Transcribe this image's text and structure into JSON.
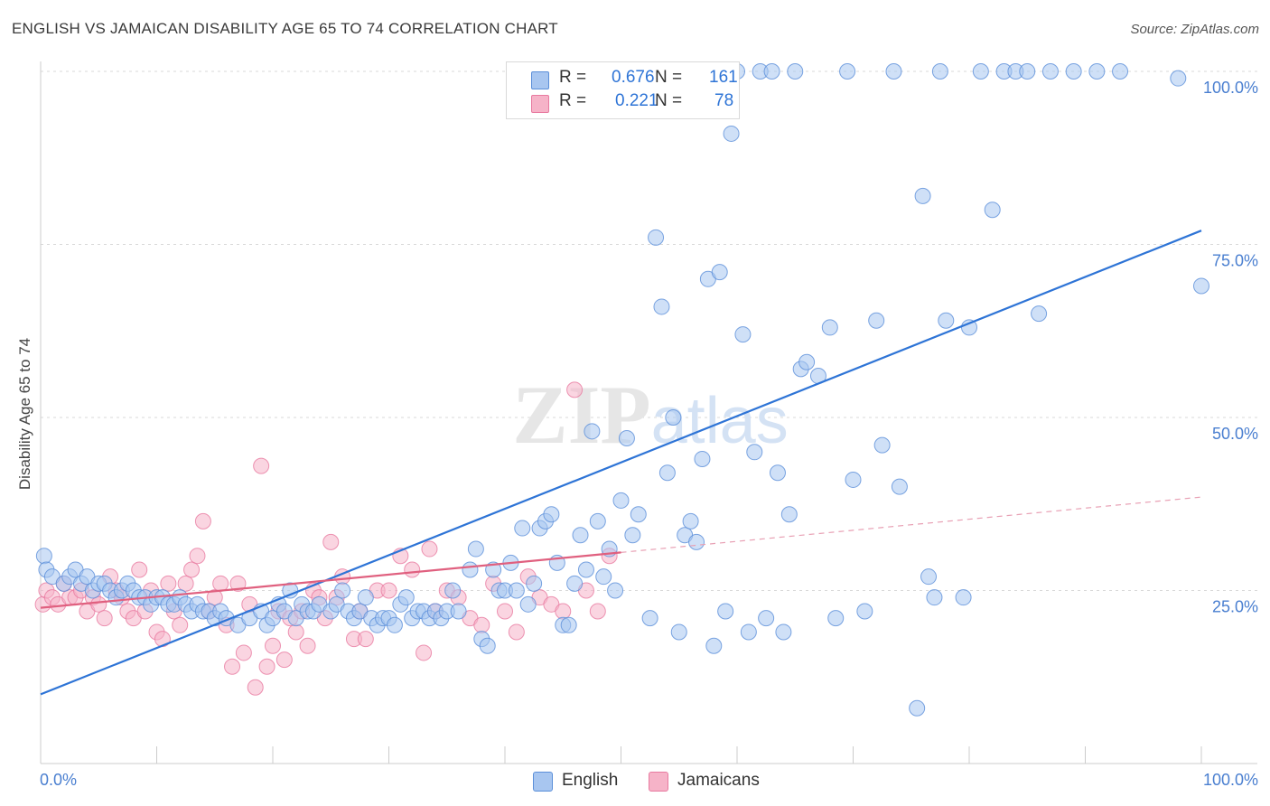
{
  "title": "ENGLISH VS JAMAICAN DISABILITY AGE 65 TO 74 CORRELATION CHART",
  "source": "Source: ZipAtlas.com",
  "watermark": {
    "bold": "ZIP",
    "light": "atlas"
  },
  "stats": [
    {
      "label": "R =",
      "r": "0.676",
      "n_label": "N =",
      "n": "161",
      "color": "#a8c6f0"
    },
    {
      "label": "R =",
      "r": "0.221",
      "n_label": "N =",
      "n": "78",
      "color": "#f6b3c8"
    }
  ],
  "legend": [
    {
      "name": "English",
      "color": "#a8c6f0"
    },
    {
      "name": "Jamaicans",
      "color": "#f6b3c8"
    }
  ],
  "chart_data": {
    "type": "scatter",
    "title": "ENGLISH VS JAMAICAN DISABILITY AGE 65 TO 74 CORRELATION CHART",
    "xlabel": "",
    "ylabel": "Disability Age 65 to 74",
    "xlim": [
      0,
      100
    ],
    "ylim": [
      0,
      100
    ],
    "x_tick_labels": [
      "0.0%",
      "100.0%"
    ],
    "y_tick_labels": [
      "25.0%",
      "50.0%",
      "75.0%",
      "100.0%"
    ],
    "y_ticks": [
      25,
      50,
      75,
      100
    ],
    "grid": "horizontal dashed",
    "legend_position": "bottom-center",
    "series": [
      {
        "name": "English",
        "color": "#5b8fd9",
        "fill": "#a8c6f0",
        "trend": {
          "x0": 0,
          "y0": 10,
          "x1": 100,
          "y1": 77,
          "color": "#2e74d6"
        },
        "points": [
          [
            0.3,
            30
          ],
          [
            0.5,
            28
          ],
          [
            1,
            27
          ],
          [
            2,
            26
          ],
          [
            2.5,
            27
          ],
          [
            3,
            28
          ],
          [
            3.5,
            26
          ],
          [
            4,
            27
          ],
          [
            4.5,
            25
          ],
          [
            5,
            26
          ],
          [
            5.5,
            26
          ],
          [
            6,
            25
          ],
          [
            6.5,
            24
          ],
          [
            7,
            25
          ],
          [
            7.5,
            26
          ],
          [
            8,
            25
          ],
          [
            8.5,
            24
          ],
          [
            9,
            24
          ],
          [
            9.5,
            23
          ],
          [
            10,
            24
          ],
          [
            10.5,
            24
          ],
          [
            11,
            23
          ],
          [
            11.5,
            23
          ],
          [
            12,
            24
          ],
          [
            12.5,
            23
          ],
          [
            13,
            22
          ],
          [
            13.5,
            23
          ],
          [
            14,
            22
          ],
          [
            14.5,
            22
          ],
          [
            15,
            21
          ],
          [
            15.5,
            22
          ],
          [
            16,
            21
          ],
          [
            17,
            20
          ],
          [
            18,
            21
          ],
          [
            19,
            22
          ],
          [
            19.5,
            20
          ],
          [
            20,
            21
          ],
          [
            20.5,
            23
          ],
          [
            21,
            22
          ],
          [
            21.5,
            25
          ],
          [
            22,
            21
          ],
          [
            22.5,
            23
          ],
          [
            23,
            22
          ],
          [
            23.5,
            22
          ],
          [
            24,
            23
          ],
          [
            25,
            22
          ],
          [
            25.5,
            23
          ],
          [
            26,
            25
          ],
          [
            26.5,
            22
          ],
          [
            27,
            21
          ],
          [
            27.5,
            22
          ],
          [
            28,
            24
          ],
          [
            28.5,
            21
          ],
          [
            29,
            20
          ],
          [
            29.5,
            21
          ],
          [
            30,
            21
          ],
          [
            30.5,
            20
          ],
          [
            31,
            23
          ],
          [
            31.5,
            24
          ],
          [
            32,
            21
          ],
          [
            32.5,
            22
          ],
          [
            33,
            22
          ],
          [
            33.5,
            21
          ],
          [
            34,
            22
          ],
          [
            34.5,
            21
          ],
          [
            35,
            22
          ],
          [
            35.5,
            25
          ],
          [
            36,
            22
          ],
          [
            37,
            28
          ],
          [
            37.5,
            31
          ],
          [
            38,
            18
          ],
          [
            38.5,
            17
          ],
          [
            39,
            28
          ],
          [
            39.5,
            25
          ],
          [
            40,
            25
          ],
          [
            40.5,
            29
          ],
          [
            41,
            25
          ],
          [
            41.5,
            34
          ],
          [
            42,
            23
          ],
          [
            42.5,
            26
          ],
          [
            43,
            34
          ],
          [
            43.5,
            35
          ],
          [
            44,
            36
          ],
          [
            44.5,
            29
          ],
          [
            45,
            20
          ],
          [
            45.5,
            20
          ],
          [
            46,
            26
          ],
          [
            46.5,
            33
          ],
          [
            47,
            28
          ],
          [
            47.5,
            48
          ],
          [
            48,
            35
          ],
          [
            48.5,
            27
          ],
          [
            49,
            31
          ],
          [
            49.5,
            25
          ],
          [
            50,
            38
          ],
          [
            50.5,
            47
          ],
          [
            51,
            33
          ],
          [
            51.5,
            36
          ],
          [
            52,
            100
          ],
          [
            52.5,
            21
          ],
          [
            53,
            76
          ],
          [
            53.5,
            66
          ],
          [
            54,
            42
          ],
          [
            54.5,
            50
          ],
          [
            55,
            19
          ],
          [
            55.5,
            33
          ],
          [
            56,
            35
          ],
          [
            56.5,
            32
          ],
          [
            57,
            44
          ],
          [
            57.5,
            70
          ],
          [
            58,
            17
          ],
          [
            58.5,
            71
          ],
          [
            59,
            22
          ],
          [
            59.5,
            91
          ],
          [
            60,
            100
          ],
          [
            60.5,
            62
          ],
          [
            61,
            19
          ],
          [
            61.5,
            45
          ],
          [
            62,
            100
          ],
          [
            62.5,
            21
          ],
          [
            63,
            100
          ],
          [
            63.5,
            42
          ],
          [
            64,
            19
          ],
          [
            64.5,
            36
          ],
          [
            65,
            100
          ],
          [
            65.5,
            57
          ],
          [
            66,
            58
          ],
          [
            67,
            56
          ],
          [
            68,
            63
          ],
          [
            68.5,
            21
          ],
          [
            69.5,
            100
          ],
          [
            70,
            41
          ],
          [
            71,
            22
          ],
          [
            72,
            64
          ],
          [
            72.5,
            46
          ],
          [
            73.5,
            100
          ],
          [
            74,
            40
          ],
          [
            75.5,
            8
          ],
          [
            76,
            82
          ],
          [
            76.5,
            27
          ],
          [
            77,
            24
          ],
          [
            77.5,
            100
          ],
          [
            78,
            64
          ],
          [
            79.5,
            24
          ],
          [
            80,
            63
          ],
          [
            81,
            100
          ],
          [
            82,
            80
          ],
          [
            83,
            100
          ],
          [
            84,
            100
          ],
          [
            85,
            100
          ],
          [
            86,
            65
          ],
          [
            87,
            100
          ],
          [
            89,
            100
          ],
          [
            91,
            100
          ],
          [
            93,
            100
          ],
          [
            98,
            99
          ],
          [
            100,
            69
          ]
        ]
      },
      {
        "name": "Jamaicans",
        "color": "#e87aa0",
        "fill": "#f6b3c8",
        "trend": {
          "x0": 0,
          "y0": 22.5,
          "x1": 50,
          "y1": 30.5,
          "color": "#e0607f"
        },
        "trend_extension": {
          "x0": 50,
          "y0": 30.5,
          "x1": 100,
          "y1": 38.5,
          "color": "#e8a0b4"
        },
        "points": [
          [
            0.2,
            23
          ],
          [
            0.5,
            25
          ],
          [
            1,
            24
          ],
          [
            1.5,
            23
          ],
          [
            2,
            26
          ],
          [
            2.5,
            24
          ],
          [
            3,
            24
          ],
          [
            3.5,
            25
          ],
          [
            4,
            22
          ],
          [
            4.5,
            24
          ],
          [
            5,
            23
          ],
          [
            5.5,
            21
          ],
          [
            6,
            27
          ],
          [
            6.5,
            25
          ],
          [
            7,
            24
          ],
          [
            7.5,
            22
          ],
          [
            8,
            21
          ],
          [
            8.5,
            28
          ],
          [
            9,
            22
          ],
          [
            9.5,
            25
          ],
          [
            10,
            19
          ],
          [
            10.5,
            18
          ],
          [
            11,
            26
          ],
          [
            11.5,
            22
          ],
          [
            12,
            20
          ],
          [
            12.5,
            26
          ],
          [
            13,
            28
          ],
          [
            13.5,
            30
          ],
          [
            14,
            35
          ],
          [
            14.5,
            22
          ],
          [
            15,
            24
          ],
          [
            15.5,
            26
          ],
          [
            16,
            20
          ],
          [
            16.5,
            14
          ],
          [
            17,
            26
          ],
          [
            17.5,
            16
          ],
          [
            18,
            23
          ],
          [
            18.5,
            11
          ],
          [
            19,
            43
          ],
          [
            19.5,
            14
          ],
          [
            20,
            17
          ],
          [
            20.5,
            22
          ],
          [
            21,
            15
          ],
          [
            21.5,
            21
          ],
          [
            22,
            19
          ],
          [
            22.5,
            22
          ],
          [
            23,
            17
          ],
          [
            23.5,
            25
          ],
          [
            24,
            24
          ],
          [
            24.5,
            21
          ],
          [
            25,
            32
          ],
          [
            25.5,
            24
          ],
          [
            26,
            27
          ],
          [
            27,
            18
          ],
          [
            27.5,
            22
          ],
          [
            28,
            18
          ],
          [
            29,
            25
          ],
          [
            30,
            25
          ],
          [
            31,
            30
          ],
          [
            32,
            28
          ],
          [
            33,
            16
          ],
          [
            33.5,
            31
          ],
          [
            34,
            22
          ],
          [
            35,
            25
          ],
          [
            36,
            24
          ],
          [
            37,
            21
          ],
          [
            38,
            20
          ],
          [
            39,
            26
          ],
          [
            40,
            22
          ],
          [
            41,
            19
          ],
          [
            42,
            27
          ],
          [
            43,
            24
          ],
          [
            44,
            23
          ],
          [
            45,
            22
          ],
          [
            46,
            54
          ],
          [
            47,
            25
          ],
          [
            48,
            22
          ],
          [
            49,
            30
          ]
        ]
      }
    ]
  }
}
